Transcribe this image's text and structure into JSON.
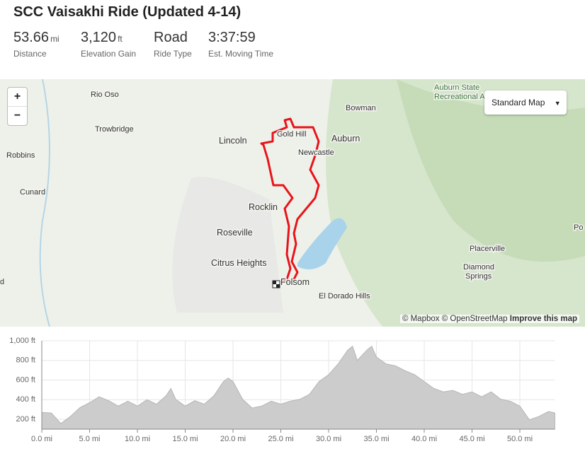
{
  "header": {
    "title": "SCC Vaisakhi Ride (Updated 4-14)"
  },
  "stats": [
    {
      "value": "53.66",
      "unit": "mi",
      "label": "Distance"
    },
    {
      "value": "3,120",
      "unit": "ft",
      "label": "Elevation Gain"
    },
    {
      "value": "Road",
      "label": "Ride Type"
    },
    {
      "value": "3:37:59",
      "label": "Est. Moving Time"
    }
  ],
  "map": {
    "zoom_in": "+",
    "zoom_out": "−",
    "style_button": "Standard Map",
    "labels": [
      "Rio Oso",
      "Bowman",
      "Auburn State",
      "Recreational A",
      "Trowbridge",
      "Gold Hill",
      "Auburn",
      "Robbins",
      "Lincoln",
      "Newcastle",
      "Cunard",
      "Rocklin",
      "Roseville",
      "Po",
      "Placerville",
      "Citrus Heights",
      "Diamond",
      "Springs",
      "d",
      "Folsom",
      "El Dorado Hills"
    ],
    "attribution": "© Mapbox © OpenStreetMap",
    "improve": "Improve this map"
  },
  "chart_data": {
    "type": "area",
    "color": "#cccccc",
    "x": [
      0,
      1,
      2,
      3,
      4,
      5,
      6,
      7,
      8,
      9,
      10,
      11,
      12,
      13,
      13.5,
      14,
      15,
      16,
      17,
      18,
      19,
      19.5,
      20,
      21,
      22,
      23,
      24,
      25,
      26,
      27,
      28,
      29,
      30,
      31,
      32,
      32.5,
      33,
      34,
      34.5,
      35,
      36,
      37,
      38,
      39,
      40,
      41,
      42,
      43,
      44,
      45,
      46,
      47,
      48,
      49,
      50,
      51,
      52,
      53,
      53.66
    ],
    "values": [
      271,
      265,
      157,
      230,
      320,
      370,
      430,
      390,
      335,
      385,
      335,
      400,
      355,
      440,
      515,
      405,
      335,
      390,
      355,
      440,
      585,
      620,
      585,
      405,
      315,
      335,
      385,
      355,
      385,
      405,
      455,
      585,
      655,
      765,
      905,
      945,
      800,
      905,
      945,
      835,
      765,
      745,
      695,
      655,
      585,
      515,
      480,
      495,
      455,
      480,
      430,
      480,
      405,
      385,
      335,
      195,
      230,
      280,
      265
    ],
    "xlim": [
      0,
      53.66
    ],
    "ylim": [
      100,
      1000
    ],
    "xticks": [
      {
        "value": 0,
        "label": "0.0 mi"
      },
      {
        "value": 5,
        "label": "5.0 mi"
      },
      {
        "value": 10,
        "label": "10.0 mi"
      },
      {
        "value": 15,
        "label": "15.0 mi"
      },
      {
        "value": 20,
        "label": "20.0 mi"
      },
      {
        "value": 25,
        "label": "25.0 mi"
      },
      {
        "value": 30,
        "label": "30.0 mi"
      },
      {
        "value": 35,
        "label": "35.0 mi"
      },
      {
        "value": 40,
        "label": "40.0 mi"
      },
      {
        "value": 45,
        "label": "45.0 mi"
      },
      {
        "value": 50,
        "label": "50.0 mi"
      }
    ],
    "yticks": [
      {
        "value": 200,
        "label": "200 ft"
      },
      {
        "value": 400,
        "label": "400 ft"
      },
      {
        "value": 600,
        "label": "600 ft"
      },
      {
        "value": 800,
        "label": "800 ft"
      },
      {
        "value": 1000,
        "label": "1,000 ft"
      }
    ],
    "grid": true
  }
}
